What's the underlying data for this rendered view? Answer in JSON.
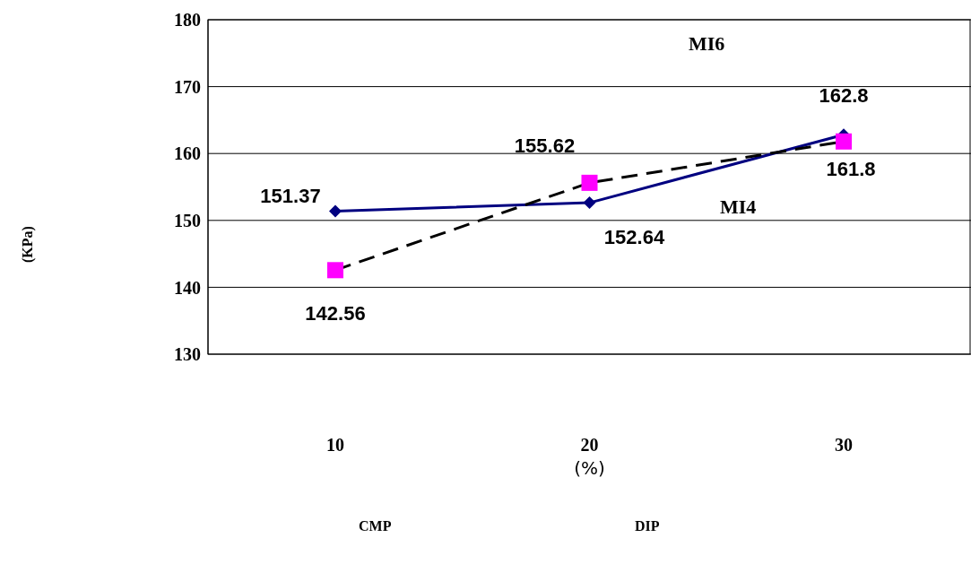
{
  "chart_data": {
    "type": "line",
    "categories": [
      "10",
      "20",
      "30"
    ],
    "xlabel": "(%)",
    "series": [
      {
        "color": "#000080",
        "values": [
          151.37,
          152.64,
          162.8
        ],
        "marker": "diamond",
        "line_style": "solid"
      },
      {
        "color": "#ff00ff",
        "values": [
          142.56,
          155.62,
          161.8
        ],
        "marker": "square",
        "line_style": "dashed"
      }
    ],
    "ylim": [
      130,
      180
    ],
    "yticks": [
      130,
      140,
      150,
      160,
      170,
      180
    ],
    "grid": "y",
    "data_labels": true,
    "annotations": [
      "MI6",
      "MI4",
      "CMP",
      "DIP",
      "(KPa)"
    ]
  }
}
